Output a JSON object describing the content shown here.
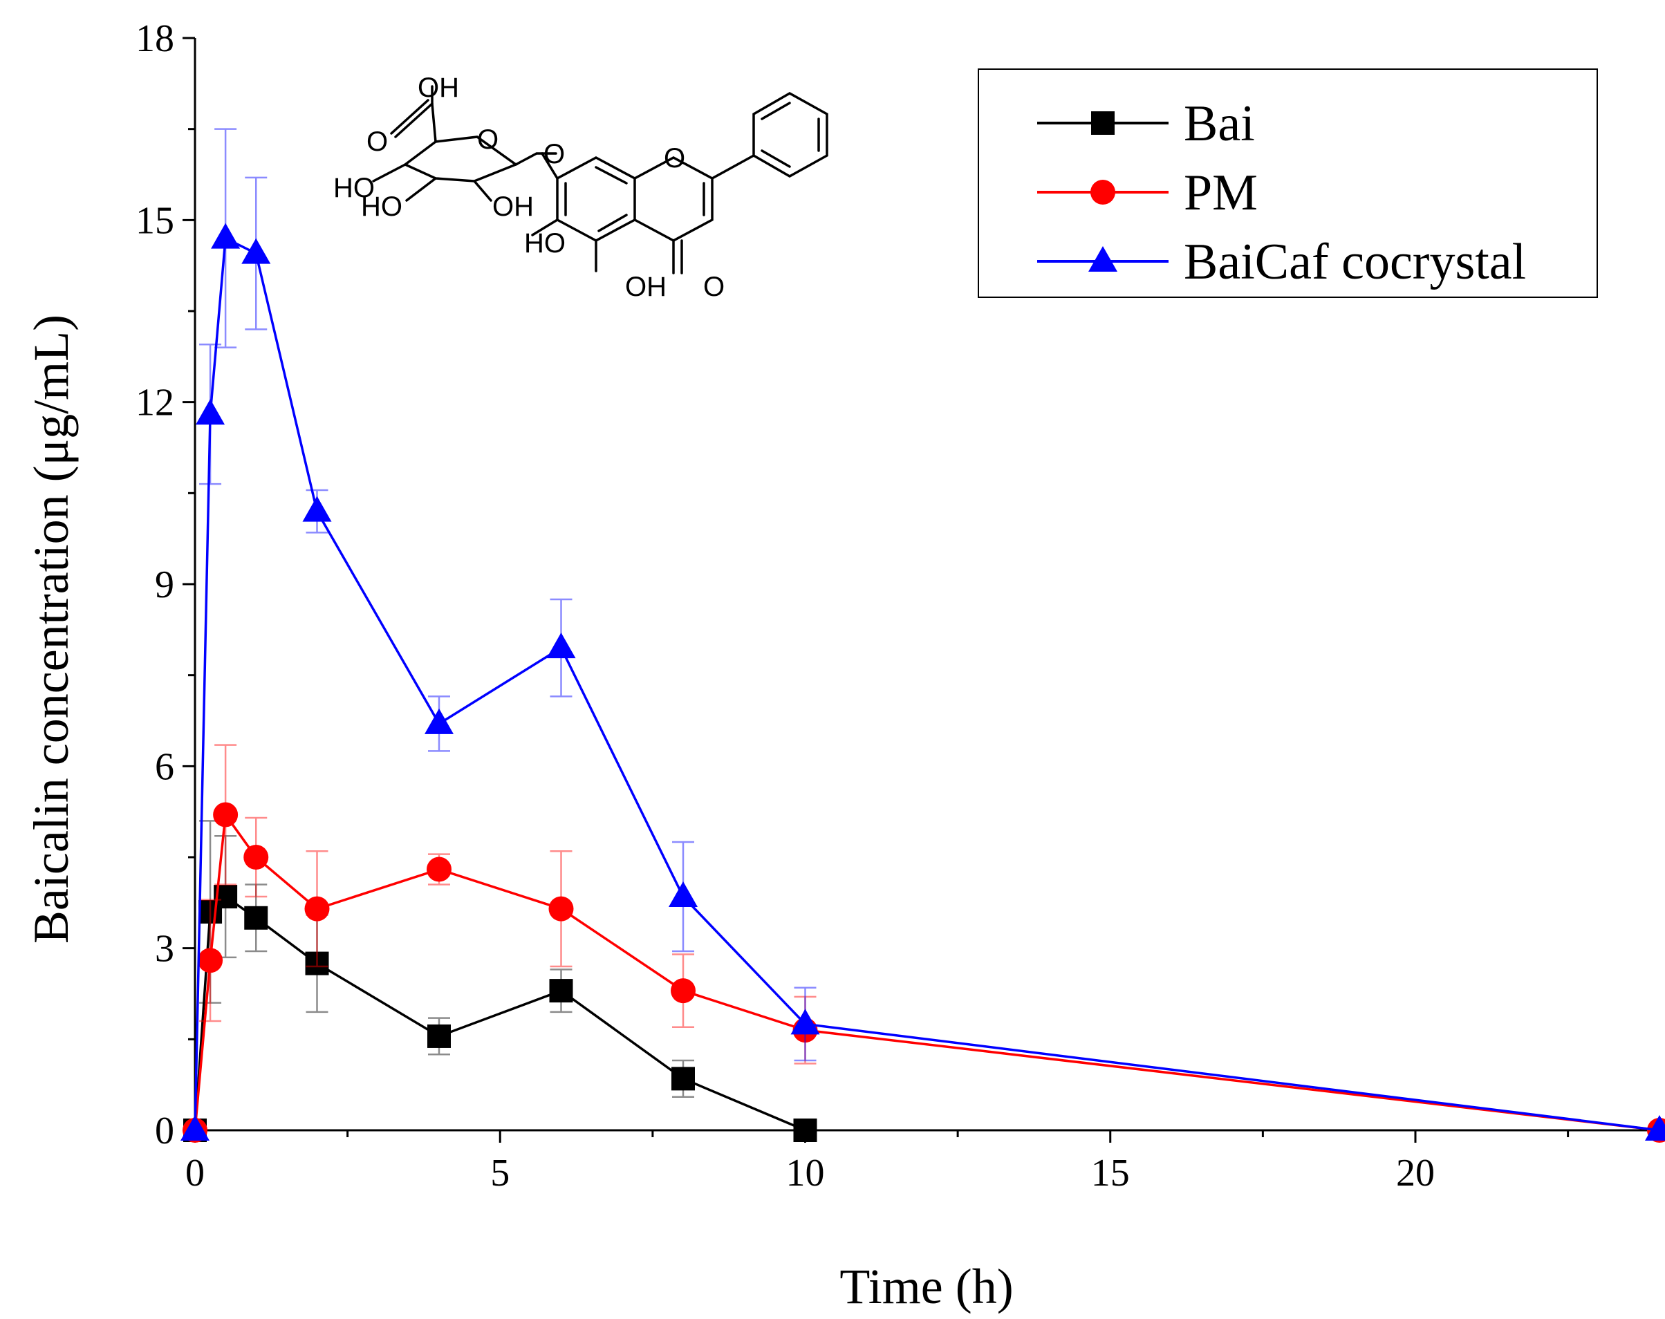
{
  "chart_data": {
    "type": "line",
    "title": "",
    "xlabel": "Time (h)",
    "ylabel": "Baicalin concentration (μg/mL)",
    "xlim": [
      0,
      24
    ],
    "ylim": [
      0,
      18
    ],
    "xticks": [
      0,
      5,
      10,
      15,
      20
    ],
    "yticks": [
      0,
      3,
      6,
      9,
      12,
      15,
      18
    ],
    "legend_position": "top-right",
    "series": [
      {
        "name": "Bai",
        "color": "#000000",
        "marker": "square",
        "x": [
          0,
          0.25,
          0.5,
          1,
          2,
          4,
          6,
          8,
          10
        ],
        "y": [
          0,
          3.6,
          3.85,
          3.5,
          2.75,
          1.55,
          2.3,
          0.85,
          0
        ],
        "err": [
          0,
          1.5,
          1.0,
          0.55,
          0.8,
          0.3,
          0.35,
          0.3,
          0
        ]
      },
      {
        "name": "PM",
        "color": "#ff0000",
        "marker": "circle",
        "x": [
          0,
          0.25,
          0.5,
          1,
          2,
          4,
          6,
          8,
          10,
          24
        ],
        "y": [
          0,
          2.8,
          5.2,
          4.5,
          3.65,
          4.3,
          3.65,
          2.3,
          1.65,
          0
        ],
        "err": [
          0,
          1.0,
          1.15,
          0.65,
          0.95,
          0.25,
          0.95,
          0.6,
          0.55,
          0
        ]
      },
      {
        "name": "BaiCaf cocrystal",
        "color": "#0000ff",
        "marker": "triangle",
        "x": [
          0,
          0.25,
          0.5,
          1,
          2,
          4,
          6,
          8,
          10,
          24
        ],
        "y": [
          0,
          11.8,
          14.7,
          14.45,
          10.2,
          6.7,
          7.95,
          3.85,
          1.75,
          0
        ],
        "err": [
          0,
          1.15,
          1.8,
          1.25,
          0.35,
          0.45,
          0.8,
          0.9,
          0.6,
          0
        ]
      }
    ]
  },
  "structure_labels": {
    "oh_top": "OH",
    "o_carboxyl": "O",
    "o_ring1": "O",
    "o_link": "O",
    "ho_a": "HO",
    "ho_b": "HO",
    "oh_c": "OH",
    "o_ring2": "O",
    "ho_6": "HO",
    "oh_5": "OH",
    "o_keto": "O"
  }
}
